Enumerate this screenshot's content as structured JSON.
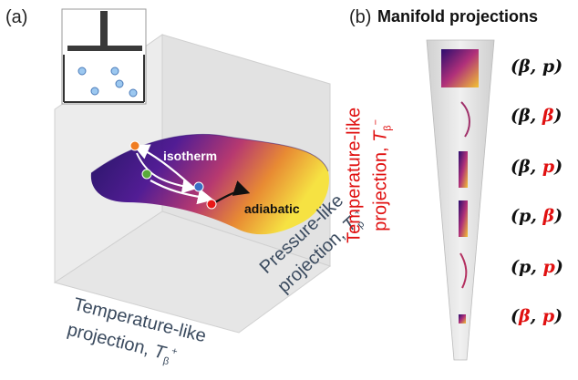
{
  "panel_a": {
    "label": "(a)",
    "axes": {
      "x_line1": "Temperature-like",
      "x_line2": "projection,",
      "x_symbol": "T",
      "x_sub": "β",
      "x_sup": "+",
      "y_line1": "Pressure-like",
      "y_line2": "projection,",
      "y_symbol": "T",
      "y_sub": "p",
      "y_sup": "+",
      "z_line1": "Temperature-like",
      "z_line2": "projection,",
      "z_symbol": "T",
      "z_sub": "β",
      "z_sup": "−"
    },
    "annotations": {
      "isotherm": "isotherm",
      "adiabatic": "adiabatic"
    },
    "state_colors": {
      "orange": "#f07d22",
      "green": "#5aa83c",
      "blue": "#3a6fc4",
      "red": "#e81717"
    }
  },
  "panel_b": {
    "label": "(b)",
    "title": "Manifold projections",
    "pairs": [
      {
        "left": "β",
        "sep": ", ",
        "right": "p",
        "left_red": false,
        "right_red": false
      },
      {
        "left": "β",
        "sep": ", ",
        "right": "β",
        "left_red": false,
        "right_red": true
      },
      {
        "left": "β",
        "sep": ", ",
        "right": "p",
        "left_red": false,
        "right_red": true
      },
      {
        "left": "p",
        "sep": ", ",
        "right": "β",
        "left_red": false,
        "right_red": true
      },
      {
        "left": "p",
        "sep": ", ",
        "right": "p",
        "left_red": false,
        "right_red": true
      },
      {
        "left": "β",
        "sep": ", ",
        "right": "p",
        "left_red": true,
        "right_red": true
      }
    ]
  },
  "colors": {
    "accent_red": "#e01010",
    "axis_text": "#3a4a5e"
  }
}
